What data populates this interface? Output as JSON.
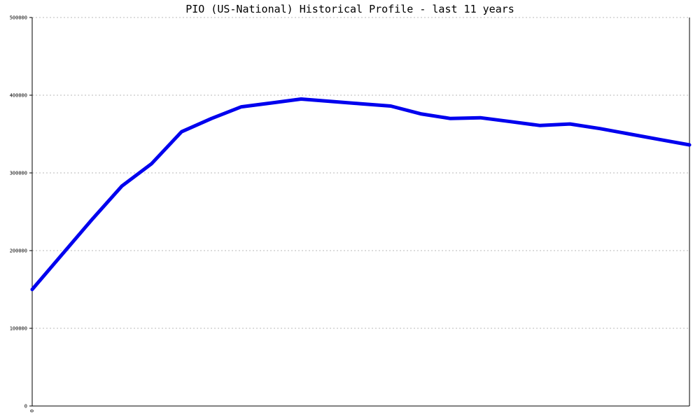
{
  "chart_data": {
    "type": "line",
    "title": "PIO (US-National) Historical Profile - last 11 years",
    "xlabel": "",
    "ylabel": "",
    "ylim": [
      0,
      500000
    ],
    "yticks": [
      0,
      100000,
      200000,
      300000,
      400000,
      500000
    ],
    "ytick_labels": [
      "0",
      "100000",
      "200000",
      "300000",
      "400000",
      "500000"
    ],
    "xtick_labels": [
      "0"
    ],
    "xlim": [
      0,
      22
    ],
    "grid": true,
    "series": [
      {
        "color": "#0000ee",
        "x": [
          0,
          1,
          2,
          3,
          4,
          5,
          6,
          7,
          8,
          9,
          10,
          11,
          12,
          13,
          14,
          15,
          16,
          17,
          18,
          19,
          20,
          21,
          22
        ],
        "values": [
          150000,
          195000,
          240000,
          283000,
          312000,
          353000,
          370000,
          385000,
          390000,
          395000,
          392000,
          389000,
          386000,
          376000,
          370000,
          371000,
          366000,
          361000,
          363000,
          357000,
          350000,
          343000,
          336000
        ]
      }
    ]
  }
}
